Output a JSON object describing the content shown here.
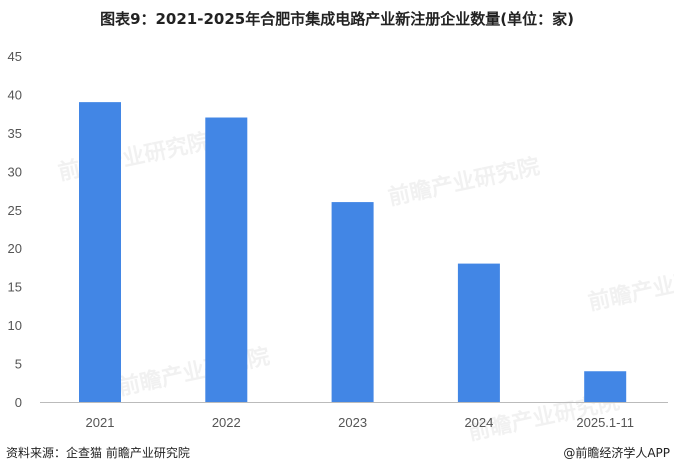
{
  "chart_data": {
    "type": "bar",
    "title": "图表9：2021-2025年合肥市集成电路产业新注册企业数量(单位：家)",
    "categories": [
      "2021",
      "2022",
      "2023",
      "2024",
      "2025.1-11"
    ],
    "values": [
      39,
      37,
      26,
      18,
      4
    ],
    "ylim": [
      0,
      45
    ],
    "yticks": [
      0,
      5,
      10,
      15,
      20,
      25,
      30,
      35,
      40,
      45
    ],
    "xlabel": "",
    "ylabel": "",
    "grid": false,
    "bar_color": "#4286E5"
  },
  "footer": {
    "source": "资料来源：企查猫 前瞻产业研究院",
    "credit": "@前瞻经济学人APP"
  },
  "watermark": "前瞻产业研究院"
}
